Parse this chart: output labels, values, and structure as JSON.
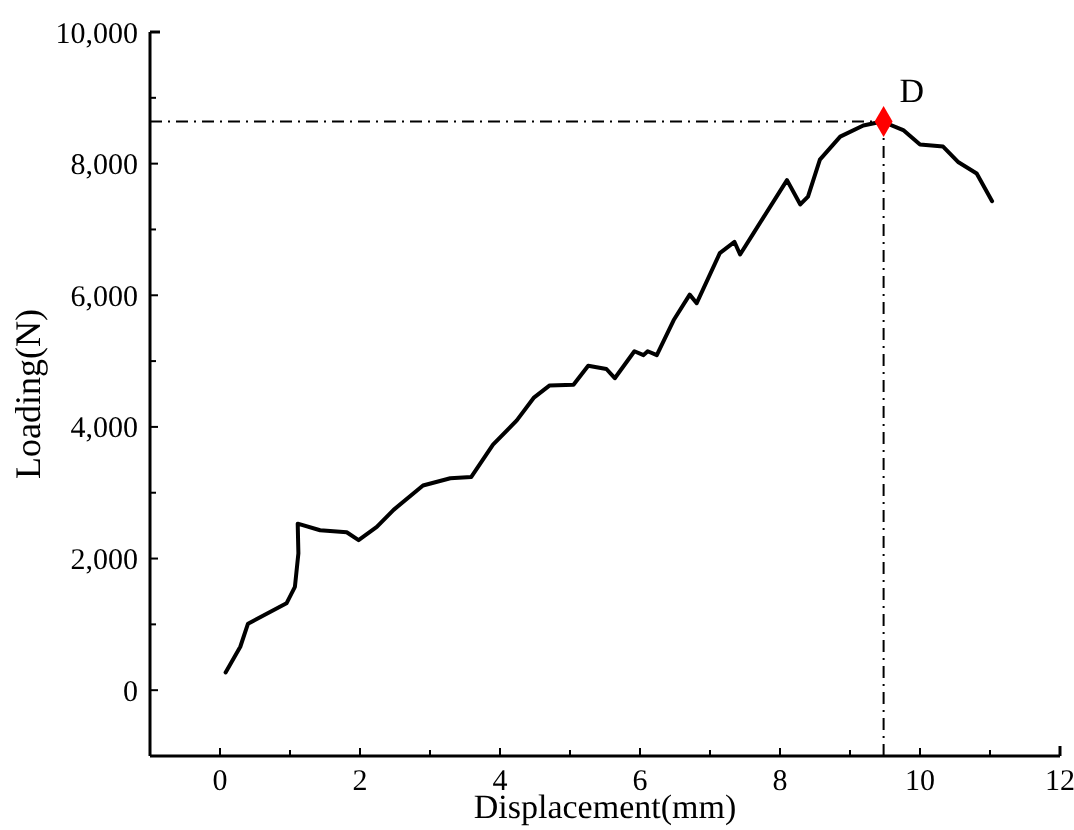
{
  "chart_data": {
    "type": "line",
    "xlabel": "Displacement(mm)",
    "ylabel": "Loading(N)",
    "xlim": [
      -1,
      12
    ],
    "xticks": [
      0,
      2,
      4,
      6,
      8,
      10,
      12
    ],
    "ylim": [
      -1000,
      10000
    ],
    "yticks": [
      0,
      {
        "value": 2000,
        "label": "2,000"
      },
      {
        "value": 4000,
        "label": "4,000"
      },
      {
        "value": 6000,
        "label": "6,000"
      },
      {
        "value": 8000,
        "label": "8,000"
      },
      {
        "value": 10000,
        "label": "10,000"
      }
    ],
    "grid": false,
    "marker": "none",
    "line_style": "solid",
    "series": [
      {
        "color": "#000000",
        "x": [
          0.08,
          0.29,
          0.4,
          0.95,
          1.07,
          1.12,
          1.11,
          1.43,
          1.81,
          1.98,
          2.24,
          2.48,
          2.9,
          3.29,
          3.59,
          3.9,
          4.24,
          4.48,
          4.71,
          5.05,
          5.26,
          5.52,
          5.64,
          5.92,
          6.05,
          6.11,
          6.24,
          6.48,
          6.71,
          6.81,
          7.14,
          7.35,
          7.43,
          7.62,
          8.1,
          8.29,
          8.4,
          8.57,
          8.86,
          9.19,
          9.46,
          9.76,
          10.0,
          10.33,
          10.55,
          10.81,
          11.03
        ],
        "values": [
          270,
          660,
          1010,
          1320,
          1570,
          2080,
          2530,
          2430,
          2400,
          2280,
          2480,
          2740,
          3110,
          3220,
          3240,
          3730,
          4100,
          4440,
          4630,
          4640,
          4930,
          4880,
          4740,
          5150,
          5090,
          5150,
          5090,
          5620,
          6010,
          5880,
          6640,
          6810,
          6620,
          6940,
          7750,
          7380,
          7500,
          8060,
          8410,
          8580,
          8640,
          8510,
          8290,
          8260,
          8020,
          7850,
          7430
        ]
      },
      {
        "type": "scatter",
        "color": "#ff0000",
        "marker": "diamond",
        "x": [
          9.48
        ],
        "values": [
          8640
        ]
      }
    ],
    "ref_lines": [
      {
        "axis": "x",
        "value": 9.48,
        "color": "#000000",
        "line_style": "dashed"
      },
      {
        "axis": "y",
        "value": 8640,
        "color": "#000000",
        "line_style": "dashed"
      }
    ],
    "annotations": [
      {
        "text": "D",
        "x": 9.48,
        "y": 8640
      }
    ]
  }
}
